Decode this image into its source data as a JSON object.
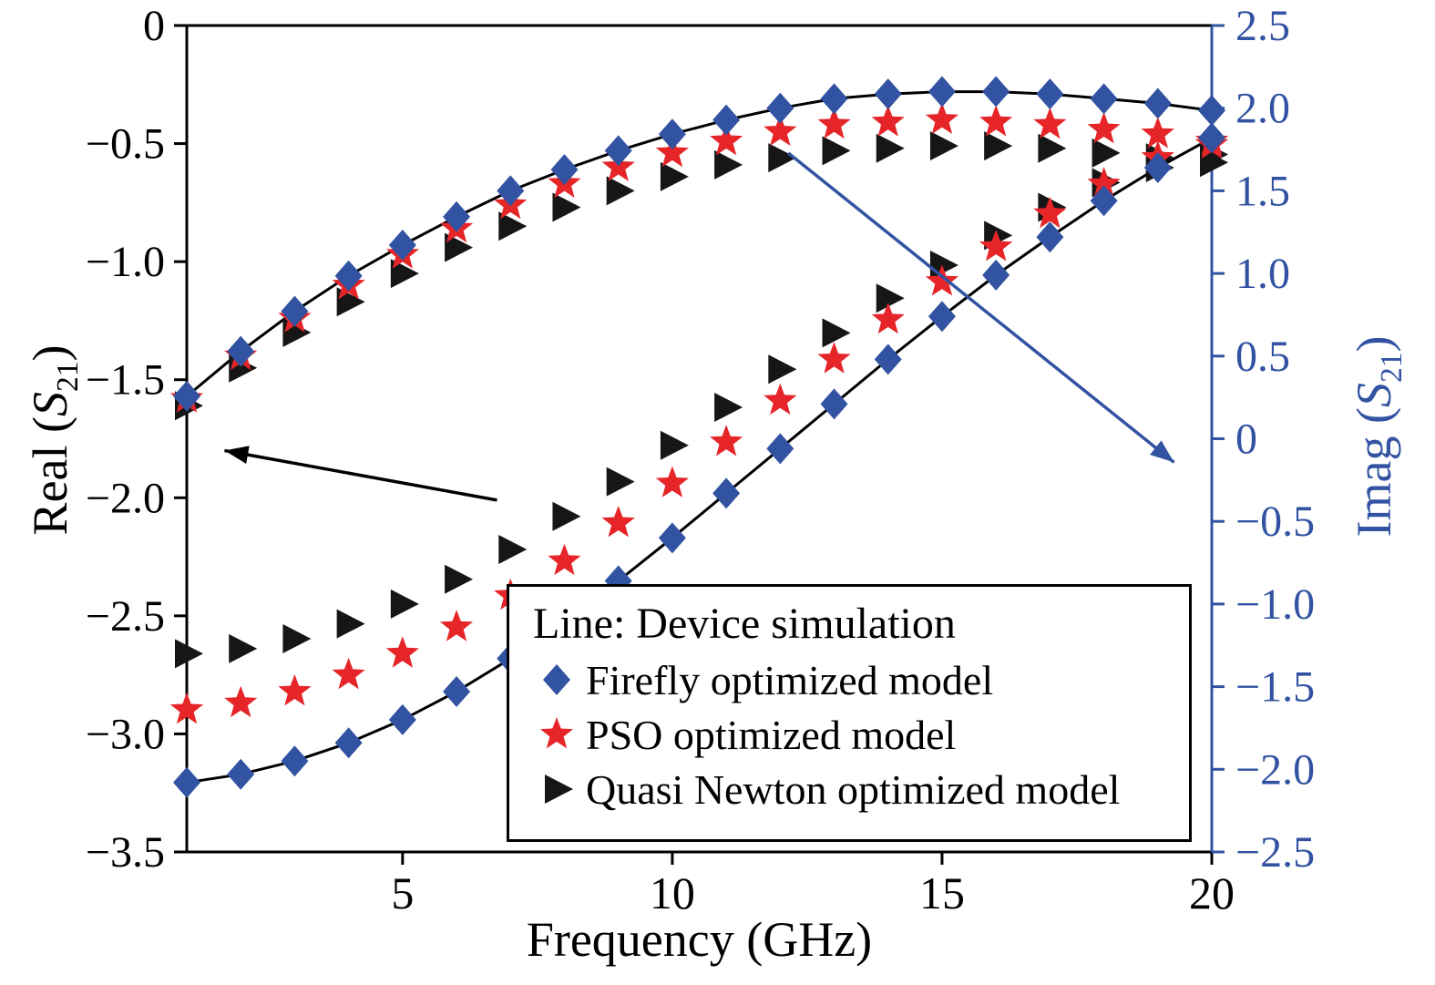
{
  "chart_data": {
    "type": "line+scatter",
    "title": "",
    "x_axis": {
      "label": "Frequency (GHz)",
      "lim": [
        1,
        20
      ],
      "ticks": [
        {
          "v": 5,
          "label": "5"
        },
        {
          "v": 10,
          "label": "10"
        },
        {
          "v": 15,
          "label": "15"
        },
        {
          "v": 20,
          "label": "20"
        }
      ]
    },
    "left_axis": {
      "label_pre": "Real (",
      "label_sym": "S",
      "label_sub": "21",
      "label_post": ")",
      "lim": [
        -3.5,
        0
      ],
      "color": "#000000",
      "ticks": [
        {
          "v": 0,
          "label": "0"
        },
        {
          "v": -0.5,
          "label": "−0.5"
        },
        {
          "v": -1.0,
          "label": "−1.0"
        },
        {
          "v": -1.5,
          "label": "−1.5"
        },
        {
          "v": -2.0,
          "label": "−2.0"
        },
        {
          "v": -2.5,
          "label": "−2.5"
        },
        {
          "v": -3.0,
          "label": "−3.0"
        },
        {
          "v": -3.5,
          "label": "−3.5"
        }
      ]
    },
    "right_axis": {
      "label_pre": "Imag (",
      "label_sym": "S",
      "label_sub": "21",
      "label_post": ")",
      "lim": [
        -2.5,
        2.5
      ],
      "color": "#3253a2",
      "ticks": [
        {
          "v": 2.5,
          "label": "2.5"
        },
        {
          "v": 2.0,
          "label": "2.0"
        },
        {
          "v": 1.5,
          "label": "1.5"
        },
        {
          "v": 1.0,
          "label": "1.0"
        },
        {
          "v": 0.5,
          "label": "0.5"
        },
        {
          "v": 0,
          "label": "0"
        },
        {
          "v": -0.5,
          "label": "−0.5"
        },
        {
          "v": -1.0,
          "label": "−1.0"
        },
        {
          "v": -1.5,
          "label": "−1.5"
        },
        {
          "v": -2.0,
          "label": "−2.0"
        },
        {
          "v": -2.5,
          "label": "−2.5"
        }
      ]
    },
    "x": [
      1,
      2,
      3,
      4,
      5,
      6,
      7,
      8,
      9,
      10,
      11,
      12,
      13,
      14,
      15,
      16,
      17,
      18,
      19,
      20
    ],
    "series": [
      {
        "id": "sim_real",
        "name": "Device simulation (Real)",
        "style": "line",
        "axis": "left",
        "color": "#000000",
        "values": [
          -1.57,
          -1.38,
          -1.21,
          -1.06,
          -0.93,
          -0.81,
          -0.7,
          -0.61,
          -0.53,
          -0.46,
          -0.4,
          -0.35,
          -0.31,
          -0.29,
          -0.28,
          -0.28,
          -0.29,
          -0.31,
          -0.33,
          -0.36
        ]
      },
      {
        "id": "sim_imag",
        "name": "Device simulation (Imag)",
        "style": "line",
        "axis": "right",
        "color": "#000000",
        "values": [
          -2.08,
          -2.03,
          -1.95,
          -1.84,
          -1.7,
          -1.53,
          -1.33,
          -1.1,
          -0.86,
          -0.6,
          -0.33,
          -0.06,
          0.21,
          0.48,
          0.74,
          0.99,
          1.22,
          1.44,
          1.64,
          1.82
        ]
      },
      {
        "id": "qn_real",
        "name": "Quasi Newton optimized model (Real)",
        "style": "scatter",
        "marker": "triangle-right",
        "axis": "left",
        "color": "#161616",
        "values": [
          -1.61,
          -1.45,
          -1.3,
          -1.17,
          -1.05,
          -0.94,
          -0.85,
          -0.77,
          -0.7,
          -0.64,
          -0.59,
          -0.56,
          -0.53,
          -0.52,
          -0.51,
          -0.51,
          -0.52,
          -0.54,
          -0.56,
          -0.58
        ]
      },
      {
        "id": "qn_imag",
        "name": "Quasi Newton optimized model (Imag)",
        "style": "scatter",
        "marker": "triangle-right",
        "axis": "right",
        "color": "#161616",
        "values": [
          -1.3,
          -1.27,
          -1.21,
          -1.12,
          -1.0,
          -0.85,
          -0.67,
          -0.47,
          -0.26,
          -0.04,
          0.19,
          0.42,
          0.64,
          0.85,
          1.05,
          1.23,
          1.4,
          1.55,
          1.64,
          1.72
        ]
      },
      {
        "id": "pso_real",
        "name": "PSO optimized model (Real)",
        "style": "scatter",
        "marker": "star",
        "axis": "left",
        "color": "#e62529",
        "values": [
          -1.58,
          -1.4,
          -1.24,
          -1.1,
          -0.97,
          -0.86,
          -0.76,
          -0.67,
          -0.6,
          -0.54,
          -0.49,
          -0.45,
          -0.42,
          -0.41,
          -0.4,
          -0.41,
          -0.42,
          -0.44,
          -0.46,
          -0.49
        ]
      },
      {
        "id": "pso_imag",
        "name": "PSO optimized model (Imag)",
        "style": "scatter",
        "marker": "star",
        "axis": "right",
        "color": "#e62529",
        "values": [
          -1.64,
          -1.6,
          -1.53,
          -1.43,
          -1.3,
          -1.14,
          -0.95,
          -0.74,
          -0.51,
          -0.27,
          -0.02,
          0.23,
          0.48,
          0.72,
          0.95,
          1.16,
          1.36,
          1.54,
          1.7,
          1.78
        ]
      },
      {
        "id": "firefly_real",
        "name": "Firefly optimized model (Real)",
        "style": "scatter",
        "marker": "diamond",
        "axis": "left",
        "color": "#3253a2",
        "values": [
          -1.57,
          -1.38,
          -1.21,
          -1.06,
          -0.93,
          -0.81,
          -0.7,
          -0.61,
          -0.53,
          -0.46,
          -0.4,
          -0.35,
          -0.31,
          -0.29,
          -0.28,
          -0.28,
          -0.29,
          -0.31,
          -0.33,
          -0.36
        ]
      },
      {
        "id": "firefly_imag",
        "name": "Firefly optimized model (Imag)",
        "style": "scatter",
        "marker": "diamond",
        "axis": "right",
        "color": "#3253a2",
        "values": [
          -2.08,
          -2.03,
          -1.95,
          -1.84,
          -1.7,
          -1.53,
          -1.33,
          -1.1,
          -0.86,
          -0.6,
          -0.33,
          -0.06,
          0.21,
          0.48,
          0.74,
          0.99,
          1.22,
          1.44,
          1.64,
          1.82
        ]
      }
    ],
    "legend": {
      "title": "Line: Device simulation",
      "entries": [
        {
          "marker": "diamond",
          "color": "#3253a2",
          "label": "Firefly optimized model"
        },
        {
          "marker": "star",
          "color": "#e62529",
          "label": "PSO optimized model"
        },
        {
          "marker": "triangle-right",
          "color": "#161616",
          "label": "Quasi Newton optimized model"
        }
      ]
    },
    "annotations": [
      {
        "type": "arrow",
        "color": "#000000",
        "axis": "left",
        "from": [
          6.75,
          -2.01
        ],
        "to": [
          1.7,
          -1.8
        ]
      },
      {
        "type": "arrow",
        "color": "#3253a2",
        "axis": "left",
        "from": [
          12.15,
          -0.54
        ],
        "to": [
          19.3,
          -1.85
        ]
      }
    ]
  }
}
